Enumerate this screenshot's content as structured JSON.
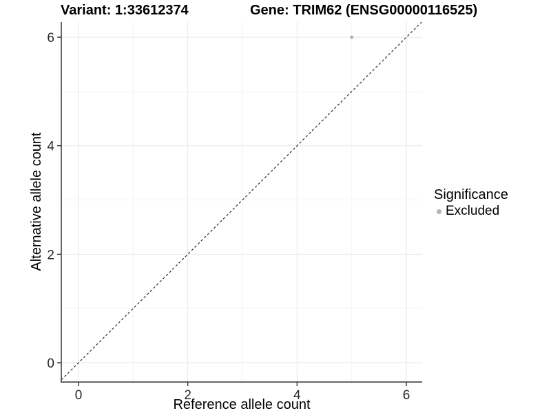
{
  "chart_data": {
    "type": "scatter",
    "titles": {
      "left": "Variant: 1:33612374",
      "right": "Gene: TRIM62 (ENSG00000116525)"
    },
    "xlabel": "Reference allele count",
    "ylabel": "Alternative allele count",
    "xlim": [
      -0.315,
      6.29
    ],
    "ylim": [
      -0.355,
      6.28
    ],
    "x_major_ticks": [
      0,
      2,
      4,
      6
    ],
    "x_minor_ticks": [
      1,
      3,
      5
    ],
    "y_major_ticks": [
      0,
      2,
      4,
      6
    ],
    "y_minor_ticks": [
      1,
      3,
      5
    ],
    "grid": "major+minor",
    "identity_line": {
      "slope": 1,
      "intercept": 0,
      "style": "dashed",
      "color": "#1a1a1a"
    },
    "series": [
      {
        "name": "Excluded",
        "color": "#b3b3b3",
        "points": [
          {
            "x": 5,
            "y": 6
          }
        ]
      }
    ],
    "legend": {
      "title": "Significance",
      "position": "right",
      "items": [
        {
          "label": "Excluded",
          "color": "#b3b3b3"
        }
      ]
    },
    "colors": {
      "background": "#ffffff",
      "grid_major": "#e7e7e7",
      "grid_minor": "#f3f3f3",
      "axis_line": "#333333",
      "tick_mark": "#333333",
      "tick_label": "#262626",
      "point": "#b3b3b3"
    }
  }
}
